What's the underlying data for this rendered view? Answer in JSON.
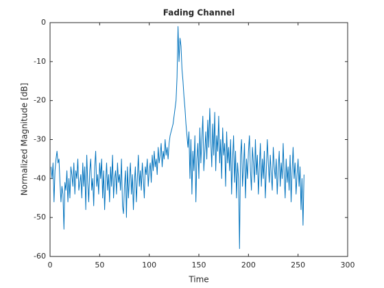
{
  "chart_data": {
    "type": "line",
    "title": "Fading Channel",
    "xlabel": "Time",
    "ylabel": "Normalized Magnitude [dB]",
    "color": "#0072bd",
    "grid": false,
    "xlim": [
      0,
      300
    ],
    "xticks": [
      0,
      50,
      100,
      150,
      200,
      250,
      300
    ],
    "ylim": [
      -60,
      0
    ],
    "yticks": [
      -60,
      -50,
      -40,
      -30,
      -20,
      -10,
      0
    ],
    "x": [
      1,
      2,
      3,
      4,
      5,
      6,
      7,
      8,
      9,
      10,
      11,
      12,
      13,
      14,
      15,
      16,
      17,
      18,
      19,
      20,
      21,
      22,
      23,
      24,
      25,
      26,
      27,
      28,
      29,
      30,
      31,
      32,
      33,
      34,
      35,
      36,
      37,
      38,
      39,
      40,
      41,
      42,
      43,
      44,
      45,
      46,
      47,
      48,
      49,
      50,
      51,
      52,
      53,
      54,
      55,
      56,
      57,
      58,
      59,
      60,
      61,
      62,
      63,
      64,
      65,
      66,
      67,
      68,
      69,
      70,
      71,
      72,
      73,
      74,
      75,
      76,
      77,
      78,
      79,
      80,
      81,
      82,
      83,
      84,
      85,
      86,
      87,
      88,
      89,
      90,
      91,
      92,
      93,
      94,
      95,
      96,
      97,
      98,
      99,
      100,
      101,
      102,
      103,
      104,
      105,
      106,
      107,
      108,
      109,
      110,
      111,
      112,
      113,
      114,
      115,
      116,
      117,
      118,
      119,
      120,
      121,
      122,
      123,
      124,
      125,
      126,
      127,
      128,
      129,
      130,
      131,
      132,
      133,
      134,
      135,
      136,
      137,
      138,
      139,
      140,
      141,
      142,
      143,
      144,
      145,
      146,
      147,
      148,
      149,
      150,
      151,
      152,
      153,
      154,
      155,
      156,
      157,
      158,
      159,
      160,
      161,
      162,
      163,
      164,
      165,
      166,
      167,
      168,
      169,
      170,
      171,
      172,
      173,
      174,
      175,
      176,
      177,
      178,
      179,
      180,
      181,
      182,
      183,
      184,
      185,
      186,
      187,
      188,
      189,
      190,
      191,
      192,
      193,
      194,
      195,
      196,
      197,
      198,
      199,
      200,
      201,
      202,
      203,
      204,
      205,
      206,
      207,
      208,
      209,
      210,
      211,
      212,
      213,
      214,
      215,
      216,
      217,
      218,
      219,
      220,
      221,
      222,
      223,
      224,
      225,
      226,
      227,
      228,
      229,
      230,
      231,
      232,
      233,
      234,
      235,
      236,
      237,
      238,
      239,
      240,
      241,
      242,
      243,
      244,
      245,
      246,
      247,
      248,
      249,
      250,
      251,
      252,
      253,
      254,
      255,
      256
    ],
    "values": [
      -37,
      -40,
      -36,
      -46,
      -38,
      -35,
      -33,
      -36,
      -35,
      -41,
      -46,
      -42,
      -44,
      -53,
      -41,
      -43,
      -38,
      -46,
      -40,
      -45,
      -37,
      -39,
      -42,
      -36,
      -44,
      -38,
      -40,
      -35,
      -43,
      -41,
      -39,
      -45,
      -36,
      -42,
      -37,
      -48,
      -34,
      -41,
      -46,
      -38,
      -35,
      -43,
      -40,
      -47,
      -37,
      -33,
      -42,
      -39,
      -44,
      -36,
      -40,
      -35,
      -45,
      -38,
      -48,
      -41,
      -36,
      -43,
      -39,
      -46,
      -37,
      -42,
      -34,
      -45,
      -40,
      -38,
      -44,
      -36,
      -41,
      -39,
      -43,
      -35,
      -47,
      -49,
      -42,
      -38,
      -50,
      -37,
      -45,
      -40,
      -36,
      -44,
      -39,
      -48,
      -41,
      -37,
      -46,
      -40,
      -34,
      -42,
      -38,
      -43,
      -36,
      -40,
      -45,
      -37,
      -39,
      -35,
      -42,
      -38,
      -36,
      -41,
      -34,
      -38,
      -33,
      -37,
      -35,
      -39,
      -32,
      -36,
      -34,
      -31,
      -37,
      -33,
      -35,
      -30,
      -34,
      -32,
      -35,
      -31,
      -29,
      -28,
      -27,
      -26,
      -24,
      -22,
      -20,
      -14,
      -1,
      -10,
      -4,
      -6,
      -12,
      -15,
      -19,
      -22,
      -26,
      -29,
      -32,
      -28,
      -40,
      -30,
      -44,
      -33,
      -38,
      -29,
      -46,
      -35,
      -31,
      -40,
      -27,
      -36,
      -30,
      -24,
      -38,
      -33,
      -28,
      -35,
      -25,
      -32,
      -22,
      -30,
      -37,
      -26,
      -34,
      -23,
      -38,
      -29,
      -33,
      -24,
      -36,
      -30,
      -40,
      -27,
      -34,
      -31,
      -42,
      -28,
      -36,
      -32,
      -38,
      -30,
      -44,
      -35,
      -29,
      -41,
      -33,
      -45,
      -36,
      -40,
      -58,
      -34,
      -30,
      -42,
      -37,
      -31,
      -45,
      -35,
      -40,
      -33,
      -29,
      -38,
      -43,
      -32,
      -36,
      -41,
      -30,
      -39,
      -34,
      -44,
      -37,
      -31,
      -42,
      -35,
      -40,
      -33,
      -45,
      -38,
      -30,
      -36,
      -41,
      -34,
      -39,
      -43,
      -32,
      -37,
      -40,
      -35,
      -44,
      -38,
      -33,
      -42,
      -36,
      -40,
      -31,
      -39,
      -45,
      -35,
      -41,
      -37,
      -43,
      -34,
      -46,
      -38,
      -32,
      -40,
      -36,
      -44,
      -39,
      -35,
      -42,
      -37,
      -48,
      -40,
      -52,
      -39
    ]
  }
}
